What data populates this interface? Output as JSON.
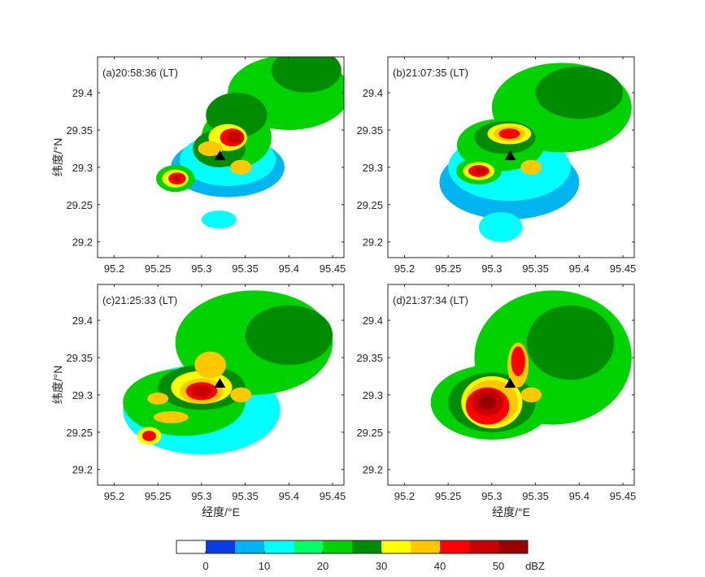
{
  "chart_data": {
    "type": "heatmap",
    "xlabel": "经度/°E",
    "ylabel": "纬度/°N",
    "xlim": [
      95.181,
      95.463
    ],
    "ylim": [
      29.179,
      29.448
    ],
    "xticks": [
      95.2,
      95.25,
      95.3,
      95.35,
      95.4,
      95.45
    ],
    "yticks": [
      29.2,
      29.25,
      29.3,
      29.35,
      29.4
    ],
    "radar_site": {
      "lon": 95.321,
      "lat": 29.315,
      "marker": "black-triangle"
    },
    "colorbar": {
      "unit": "dBZ",
      "ticks": [
        0,
        10,
        20,
        30,
        40,
        50
      ],
      "bounds": [
        -5,
        0,
        5,
        10,
        15,
        20,
        25,
        30,
        35,
        40,
        45,
        50,
        55
      ],
      "colors": [
        "#ffffff",
        "#0a3ce6",
        "#00b4f0",
        "#00ffff",
        "#00ff64",
        "#00d200",
        "#008c00",
        "#ffff00",
        "#ffc800",
        "#ff0000",
        "#c80000",
        "#960000"
      ]
    },
    "panels": [
      {
        "label": "(a)20:58:36 (LT)",
        "echoes": [
          [
            95.4,
            29.4,
            0.07,
            0.05,
            20
          ],
          [
            95.42,
            29.43,
            0.04,
            0.03,
            25
          ],
          [
            95.33,
            29.3,
            0.065,
            0.04,
            5
          ],
          [
            95.33,
            29.31,
            0.055,
            0.035,
            10
          ],
          [
            95.34,
            29.34,
            0.04,
            0.04,
            20
          ],
          [
            95.34,
            29.37,
            0.035,
            0.03,
            25
          ],
          [
            95.32,
            29.325,
            0.03,
            0.025,
            25
          ],
          [
            95.33,
            29.34,
            0.022,
            0.018,
            30
          ],
          [
            95.31,
            29.325,
            0.014,
            0.01,
            35
          ],
          [
            95.335,
            29.34,
            0.014,
            0.012,
            40
          ],
          [
            95.338,
            29.34,
            0.009,
            0.008,
            45
          ],
          [
            95.27,
            29.285,
            0.022,
            0.018,
            20
          ],
          [
            95.27,
            29.285,
            0.015,
            0.012,
            30
          ],
          [
            95.272,
            29.285,
            0.01,
            0.008,
            40
          ],
          [
            95.272,
            29.285,
            0.005,
            0.004,
            45
          ],
          [
            95.32,
            29.23,
            0.02,
            0.012,
            10
          ],
          [
            95.345,
            29.3,
            0.012,
            0.01,
            35
          ]
        ]
      },
      {
        "label": "(b)21:07:35 (LT)",
        "echoes": [
          [
            95.38,
            29.38,
            0.08,
            0.06,
            20
          ],
          [
            95.4,
            29.4,
            0.05,
            0.035,
            25
          ],
          [
            95.32,
            29.28,
            0.08,
            0.05,
            5
          ],
          [
            95.32,
            29.3,
            0.07,
            0.045,
            10
          ],
          [
            95.31,
            29.33,
            0.05,
            0.035,
            20
          ],
          [
            95.315,
            29.34,
            0.035,
            0.022,
            25
          ],
          [
            95.32,
            29.345,
            0.025,
            0.014,
            30
          ],
          [
            95.32,
            29.345,
            0.018,
            0.01,
            35
          ],
          [
            95.32,
            29.345,
            0.012,
            0.007,
            40
          ],
          [
            95.285,
            29.295,
            0.026,
            0.018,
            20
          ],
          [
            95.285,
            29.295,
            0.018,
            0.012,
            30
          ],
          [
            95.285,
            29.295,
            0.012,
            0.008,
            40
          ],
          [
            95.287,
            29.295,
            0.007,
            0.005,
            45
          ],
          [
            95.31,
            29.22,
            0.025,
            0.02,
            10
          ],
          [
            95.345,
            29.3,
            0.012,
            0.01,
            35
          ]
        ]
      },
      {
        "label": "(c)21:25:33 (LT)",
        "echoes": [
          [
            95.36,
            29.37,
            0.09,
            0.07,
            20
          ],
          [
            95.4,
            29.38,
            0.05,
            0.04,
            25
          ],
          [
            95.3,
            29.28,
            0.09,
            0.06,
            10
          ],
          [
            95.28,
            29.29,
            0.07,
            0.045,
            20
          ],
          [
            95.3,
            29.31,
            0.05,
            0.03,
            25
          ],
          [
            95.3,
            29.31,
            0.035,
            0.022,
            30
          ],
          [
            95.31,
            29.34,
            0.018,
            0.018,
            35
          ],
          [
            95.3,
            29.305,
            0.025,
            0.017,
            35
          ],
          [
            95.3,
            29.305,
            0.018,
            0.012,
            40
          ],
          [
            95.3,
            29.305,
            0.012,
            0.008,
            45
          ],
          [
            95.25,
            29.295,
            0.012,
            0.008,
            35
          ],
          [
            95.265,
            29.27,
            0.02,
            0.008,
            35
          ],
          [
            95.24,
            29.245,
            0.014,
            0.012,
            30
          ],
          [
            95.24,
            29.245,
            0.008,
            0.007,
            40
          ],
          [
            95.345,
            29.3,
            0.012,
            0.01,
            35
          ]
        ]
      },
      {
        "label": "(d)21:37:34 (LT)",
        "echoes": [
          [
            95.37,
            29.35,
            0.09,
            0.09,
            20
          ],
          [
            95.39,
            29.37,
            0.05,
            0.05,
            25
          ],
          [
            95.3,
            29.29,
            0.07,
            0.05,
            20
          ],
          [
            95.3,
            29.29,
            0.05,
            0.04,
            25
          ],
          [
            95.3,
            29.29,
            0.035,
            0.035,
            30
          ],
          [
            95.3,
            29.29,
            0.03,
            0.03,
            35
          ],
          [
            95.33,
            29.34,
            0.012,
            0.03,
            35
          ],
          [
            95.295,
            29.285,
            0.025,
            0.025,
            40
          ],
          [
            95.295,
            29.29,
            0.018,
            0.018,
            45
          ],
          [
            95.295,
            29.29,
            0.01,
            0.01,
            50
          ],
          [
            95.33,
            29.345,
            0.008,
            0.02,
            40
          ],
          [
            95.355,
            29.31,
            0.02,
            0.02,
            10
          ],
          [
            95.345,
            29.3,
            0.012,
            0.01,
            35
          ]
        ]
      }
    ]
  }
}
